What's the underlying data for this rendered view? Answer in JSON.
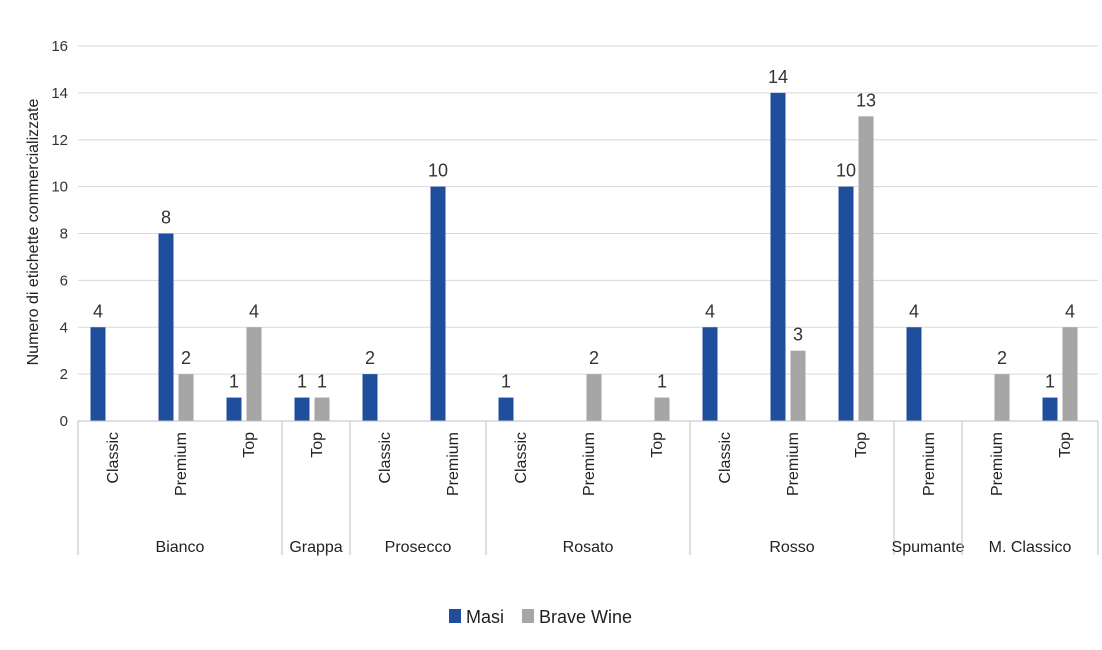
{
  "chart_data": {
    "type": "bar",
    "ylabel": "Numero di etichette commercializzate",
    "xlabel": "",
    "ylim": [
      0,
      16
    ],
    "yticks": [
      0,
      2,
      4,
      6,
      8,
      10,
      12,
      14,
      16
    ],
    "grid": true,
    "legend_position": "bottom",
    "groups": [
      {
        "name": "Bianco",
        "categories": [
          "Classic",
          "Premium",
          "Top"
        ]
      },
      {
        "name": "Grappa",
        "categories": [
          "Top"
        ]
      },
      {
        "name": "Prosecco",
        "categories": [
          "Classic",
          "Premium"
        ]
      },
      {
        "name": "Rosato",
        "categories": [
          "Classic",
          "Premium",
          "Top"
        ]
      },
      {
        "name": "Rosso",
        "categories": [
          "Classic",
          "Premium",
          "Top"
        ]
      },
      {
        "name": "Spumante",
        "categories": [
          "Premium"
        ]
      },
      {
        "name": "M. Classico",
        "categories": [
          "Premium",
          "Top"
        ]
      }
    ],
    "series": [
      {
        "name": "Masi",
        "color": "#1f4e9c",
        "values": [
          4,
          8,
          1,
          1,
          2,
          10,
          1,
          null,
          null,
          4,
          14,
          10,
          4,
          null,
          1
        ]
      },
      {
        "name": "Brave Wine",
        "color": "#a6a6a6",
        "values": [
          null,
          2,
          4,
          1,
          null,
          null,
          null,
          2,
          1,
          null,
          3,
          13,
          null,
          2,
          4
        ]
      }
    ]
  }
}
